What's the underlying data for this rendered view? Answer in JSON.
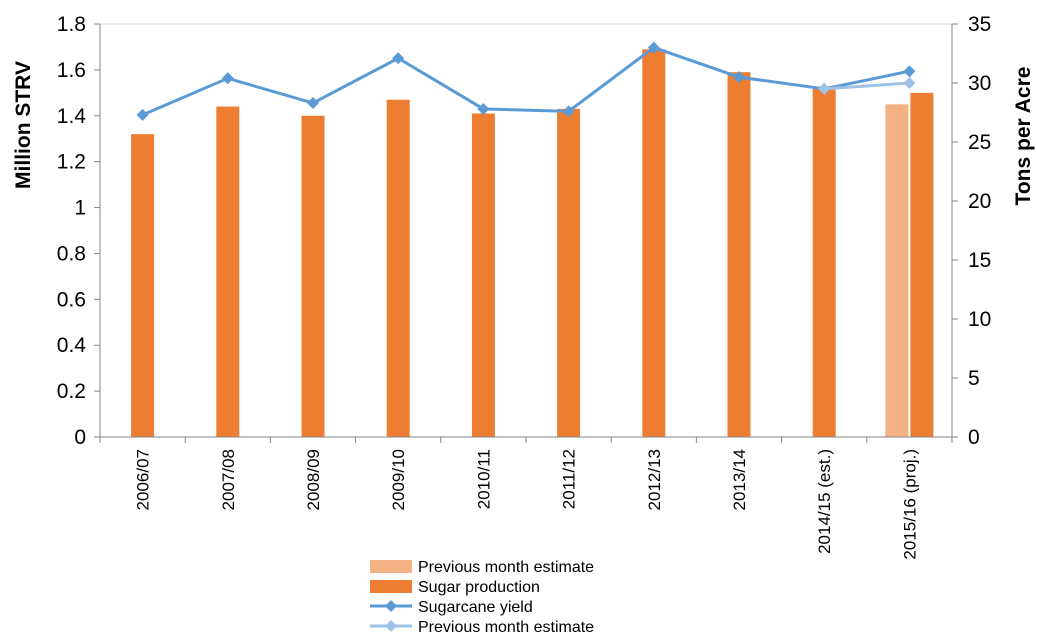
{
  "chart_data": {
    "type": "bar",
    "title": "",
    "categories": [
      "2006/07",
      "2007/08",
      "2008/09",
      "2009/10",
      "2010/11",
      "2011/12",
      "2012/13",
      "2013/14",
      "2014/15 (est.)",
      "2015/16 (proj.)"
    ],
    "y_left": {
      "label": "Million STRV",
      "ylim": [
        0,
        1.8
      ],
      "ticks": [
        "0",
        "0.2",
        "0.4",
        "0.6",
        "0.8",
        "1",
        "1.2",
        "1.4",
        "1.6",
        "1.8"
      ]
    },
    "y_right": {
      "label": "Tons per Acre",
      "ylim": [
        0,
        35
      ],
      "ticks": [
        "0",
        "5",
        "10",
        "15",
        "20",
        "25",
        "30",
        "35"
      ]
    },
    "series": [
      {
        "name": "Previous month estimate",
        "kind": "bar",
        "axis": "left",
        "color": "#F4B183",
        "values": [
          null,
          null,
          null,
          null,
          null,
          null,
          null,
          null,
          null,
          1.45
        ]
      },
      {
        "name": "Sugar production",
        "kind": "bar",
        "axis": "left",
        "color": "#ED7D31",
        "values": [
          1.32,
          1.44,
          1.4,
          1.47,
          1.41,
          1.43,
          1.69,
          1.59,
          1.52,
          1.5
        ]
      },
      {
        "name": "Sugarcane yield",
        "kind": "line",
        "axis": "right",
        "color": "#5B9BD5",
        "values": [
          27.3,
          30.4,
          28.3,
          32.1,
          27.8,
          27.6,
          33.0,
          30.5,
          29.5,
          31.0
        ]
      },
      {
        "name": "Previous month estimate",
        "kind": "line",
        "axis": "right",
        "color": "#9DC3E6",
        "values": [
          null,
          null,
          null,
          null,
          null,
          null,
          null,
          null,
          29.5,
          30.0
        ]
      }
    ],
    "grid": false,
    "legend_position": "bottom"
  }
}
